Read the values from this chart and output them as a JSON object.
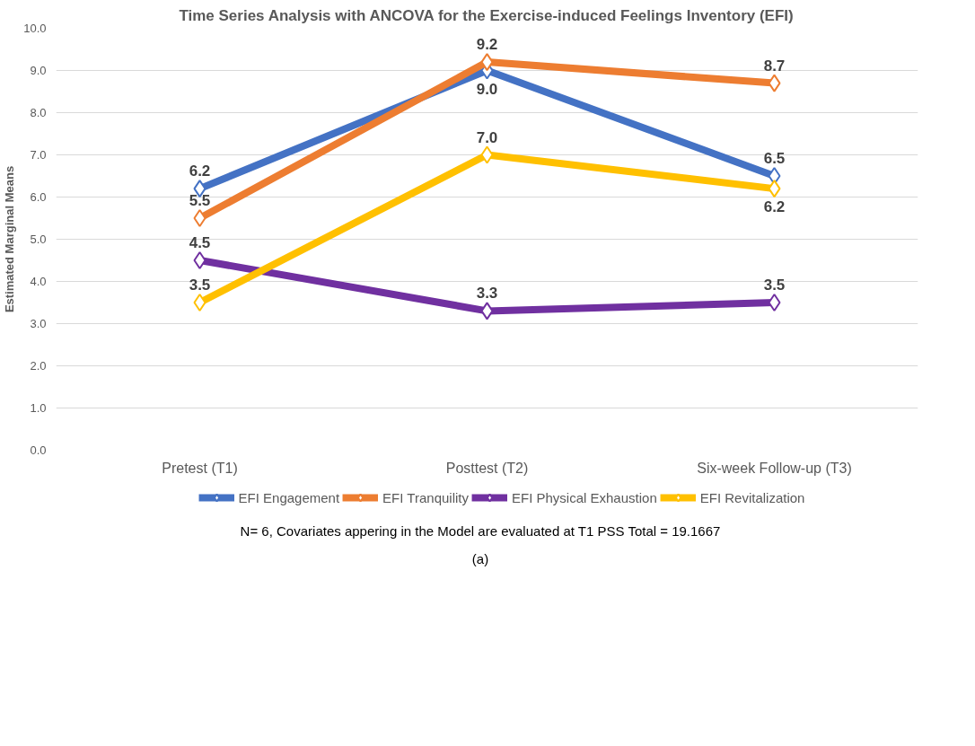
{
  "chart_data": {
    "type": "line",
    "title": "Time Series Analysis with ANCOVA for the Exercise-induced Feelings Inventory (EFI)",
    "ylabel": "Estimated Marginal Means",
    "categories": [
      "Pretest (T1)",
      "Posttest (T2)",
      "Six-week Follow-up (T3)"
    ],
    "series": [
      {
        "name": "EFI Engagement",
        "color": "#4472c4",
        "values": [
          6.2,
          9.0,
          6.5
        ],
        "value_labels": [
          "6.2",
          "9.0",
          "6.5"
        ]
      },
      {
        "name": "EFI Tranquility",
        "color": "#ed7d31",
        "values": [
          5.5,
          9.2,
          8.7
        ],
        "value_labels": [
          "5.5",
          "9.2",
          "8.7"
        ]
      },
      {
        "name": "EFI Physical Exhaustion",
        "color": "#7030a0",
        "values": [
          4.5,
          3.3,
          3.5
        ],
        "value_labels": [
          "4.5",
          "3.3",
          "3.5"
        ]
      },
      {
        "name": "EFI Revitalization",
        "color": "#ffc000",
        "values": [
          3.5,
          7.0,
          6.2
        ],
        "value_labels": [
          "3.5",
          "7.0",
          "6.2"
        ]
      }
    ],
    "ylim": [
      0,
      10
    ],
    "yticks": [
      {
        "value": 0,
        "label": "0.0"
      },
      {
        "value": 1,
        "label": "1.0"
      },
      {
        "value": 2,
        "label": "2.0"
      },
      {
        "value": 3,
        "label": "3.0"
      },
      {
        "value": 4,
        "label": "4.0"
      },
      {
        "value": 5,
        "label": "5.0"
      },
      {
        "value": 6,
        "label": "6.0"
      },
      {
        "value": 7,
        "label": "7.0"
      },
      {
        "value": 8,
        "label": "8.0"
      },
      {
        "value": 9,
        "label": "9.0"
      },
      {
        "value": 10,
        "label": "10.0"
      }
    ],
    "grid": "y",
    "legend": "bottom",
    "marker": "diamond",
    "line_style": "solid",
    "annotations": [
      "N= 6, Covariates appering in the Model are evaluated at T1 PSS Total = 19.1667",
      "(a)"
    ]
  }
}
